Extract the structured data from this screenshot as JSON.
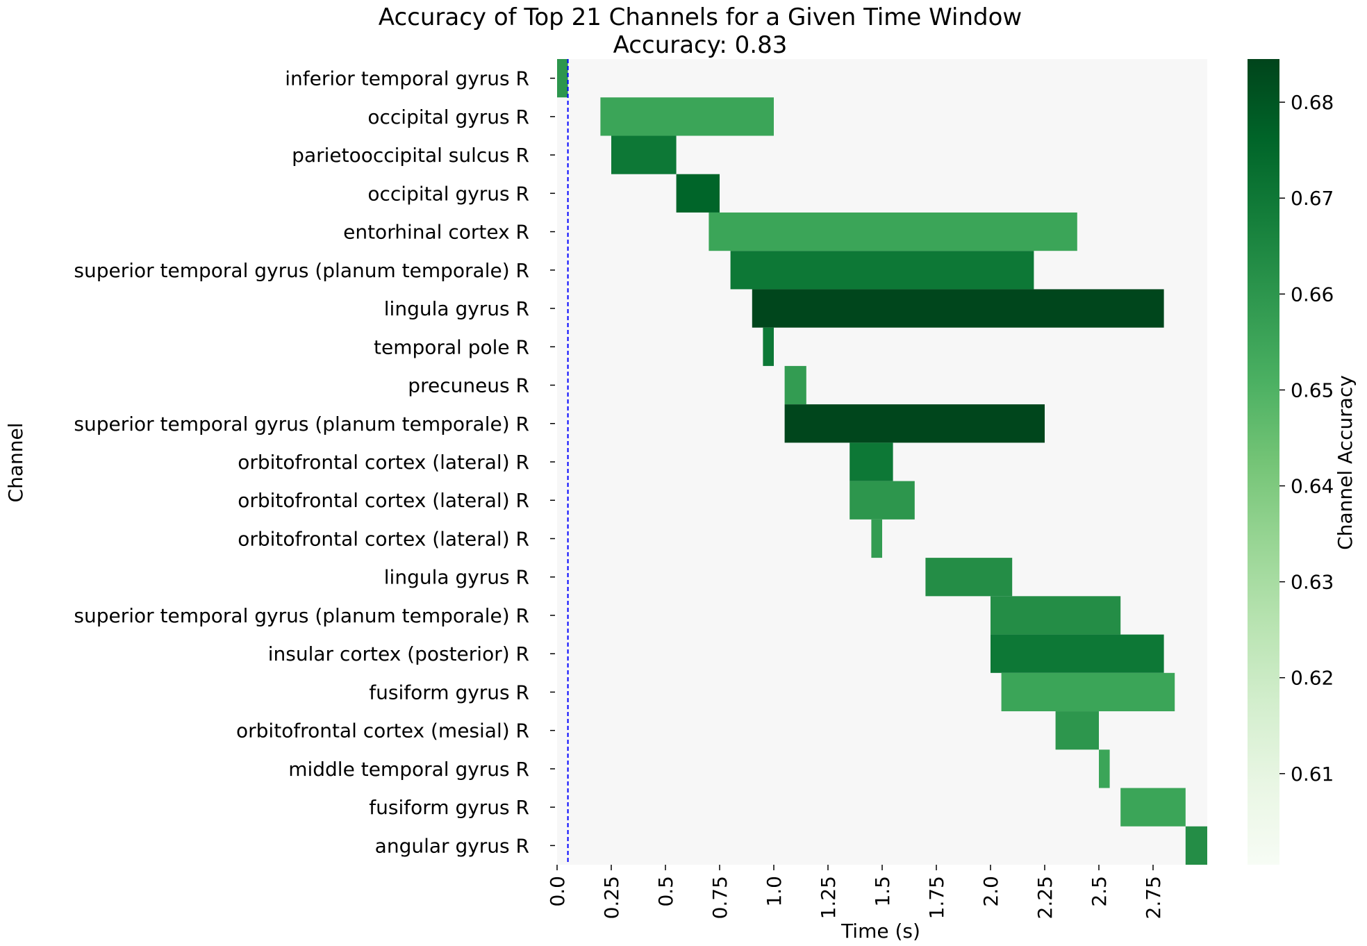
{
  "chart_data": {
    "type": "heatmap",
    "title": "Accuracy of Top 21 Channels for a Given Time Window",
    "subtitle": "Accuracy: 0.83",
    "xlabel": "Time (s)",
    "ylabel": "Channel",
    "xlim": [
      0,
      3.0
    ],
    "x_ticks": [
      0.0,
      0.25,
      0.5,
      0.75,
      1.0,
      1.25,
      1.5,
      1.75,
      2.0,
      2.25,
      2.5,
      2.75
    ],
    "x_tick_labels": [
      "0.0",
      "0.25",
      "0.5",
      "0.75",
      "1.0",
      "1.25",
      "1.5",
      "1.75",
      "2.0",
      "2.25",
      "2.5",
      "2.75"
    ],
    "reference_line_x": 0.05,
    "reference_line_color": "#0000ff",
    "background_color": "#f7f7f7",
    "colorbar": {
      "label": "Channel Accuracy",
      "range": [
        0.6005,
        0.6845
      ],
      "ticks": [
        0.61,
        0.62,
        0.63,
        0.64,
        0.65,
        0.66,
        0.67,
        0.68
      ],
      "tick_labels": [
        "0.61",
        "0.62",
        "0.63",
        "0.64",
        "0.65",
        "0.66",
        "0.67",
        "0.68"
      ],
      "colormap": "Greens"
    },
    "channels": [
      {
        "label": "inferior temporal gyrus R",
        "start": 0.0,
        "end": 0.05,
        "accuracy": 0.66
      },
      {
        "label": "occipital gyrus R",
        "start": 0.2,
        "end": 1.0,
        "accuracy": 0.655
      },
      {
        "label": "parietooccipital sulcus R",
        "start": 0.25,
        "end": 0.55,
        "accuracy": 0.67
      },
      {
        "label": "occipital gyrus R",
        "start": 0.55,
        "end": 0.75,
        "accuracy": 0.676
      },
      {
        "label": "entorhinal cortex R",
        "start": 0.7,
        "end": 2.4,
        "accuracy": 0.655
      },
      {
        "label": "superior temporal gyrus (planum temporale) R",
        "start": 0.8,
        "end": 2.2,
        "accuracy": 0.67
      },
      {
        "label": "lingula gyrus R",
        "start": 0.9,
        "end": 2.8,
        "accuracy": 0.684
      },
      {
        "label": "temporal pole R",
        "start": 0.95,
        "end": 1.0,
        "accuracy": 0.67
      },
      {
        "label": "precuneus R",
        "start": 1.05,
        "end": 1.15,
        "accuracy": 0.658
      },
      {
        "label": "superior temporal gyrus (planum temporale) R",
        "start": 1.05,
        "end": 2.25,
        "accuracy": 0.684
      },
      {
        "label": "orbitofrontal cortex (lateral) R",
        "start": 1.35,
        "end": 1.55,
        "accuracy": 0.67
      },
      {
        "label": "orbitofrontal cortex (lateral) R",
        "start": 1.35,
        "end": 1.65,
        "accuracy": 0.66
      },
      {
        "label": "orbitofrontal cortex (lateral) R",
        "start": 1.45,
        "end": 1.5,
        "accuracy": 0.658
      },
      {
        "label": "lingula gyrus R",
        "start": 1.7,
        "end": 2.1,
        "accuracy": 0.663
      },
      {
        "label": "superior temporal gyrus (planum temporale) R",
        "start": 2.0,
        "end": 2.6,
        "accuracy": 0.663
      },
      {
        "label": "insular cortex (posterior) R",
        "start": 2.0,
        "end": 2.8,
        "accuracy": 0.67
      },
      {
        "label": "fusiform gyrus R",
        "start": 2.05,
        "end": 2.85,
        "accuracy": 0.655
      },
      {
        "label": "orbitofrontal cortex (mesial) R",
        "start": 2.3,
        "end": 2.5,
        "accuracy": 0.66
      },
      {
        "label": "middle temporal gyrus R",
        "start": 2.5,
        "end": 2.55,
        "accuracy": 0.655
      },
      {
        "label": "fusiform gyrus R",
        "start": 2.6,
        "end": 2.9,
        "accuracy": 0.655
      },
      {
        "label": "angular gyrus R",
        "start": 2.9,
        "end": 3.0,
        "accuracy": 0.663
      }
    ]
  }
}
